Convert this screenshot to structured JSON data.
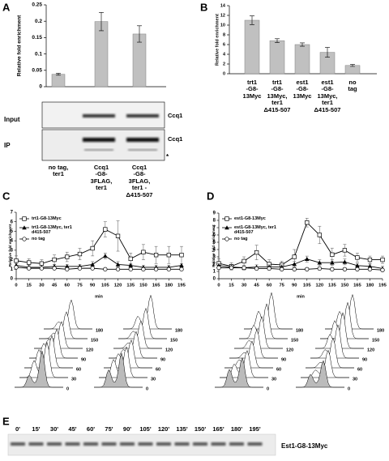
{
  "panel_labels": [
    "A",
    "B",
    "C",
    "D",
    "E"
  ],
  "chart_data": [
    {
      "type": "bar",
      "ylabel": "Relative fold enrichment",
      "categories": [
        "no tag,\nter1",
        "Ccq1\n-G8-\n3FLAG,\nter1",
        "Ccq1\n-G8-\n3FLAG,\nter1 -\nΔ415-507"
      ],
      "values": [
        0.038,
        0.199,
        0.161
      ],
      "errors": [
        0.003,
        0.028,
        0.025
      ],
      "color": "#c0c0c0",
      "ylim": [
        0,
        0.25
      ],
      "yticks": [
        0,
        0.05,
        0.1,
        0.15,
        0.2,
        0.25
      ]
    },
    {
      "type": "bar",
      "ylabel": "Relative fold enrichment",
      "categories": [
        "trt1\n-G8-\n13Myc",
        "trt1\n-G8-\n13Myc,\nter1\nΔ415-507",
        "est1\n-G8-\n13Myc",
        "est1\n-G8-\n13Myc,\nter1\nΔ415-507",
        "no\ntag"
      ],
      "values": [
        11.0,
        6.8,
        6.0,
        4.4,
        1.7
      ],
      "errors": [
        0.9,
        0.4,
        0.35,
        1.0,
        0.2
      ],
      "color": "#c0c0c0",
      "ylim": [
        0,
        14
      ],
      "yticks": [
        0,
        2,
        4,
        6,
        8,
        10,
        12,
        14
      ]
    },
    {
      "type": "line",
      "ylabel": "Relative fold enrichment",
      "xlabel": "min",
      "x": [
        0,
        15,
        30,
        45,
        60,
        75,
        90,
        105,
        120,
        135,
        150,
        165,
        180,
        195
      ],
      "xlim": [
        0,
        195
      ],
      "xticks": [
        0,
        15,
        30,
        45,
        60,
        75,
        90,
        105,
        120,
        135,
        150,
        165,
        180,
        195
      ],
      "ylim": [
        0,
        7
      ],
      "yticks": [
        0,
        1,
        2,
        3,
        4,
        5,
        6,
        7
      ],
      "series": [
        {
          "name": "trt1-G8-13Myc",
          "color": "#000000",
          "marker": "square",
          "values": [
            1.9,
            1.7,
            1.6,
            2.0,
            2.3,
            2.6,
            3.2,
            5.2,
            4.5,
            2.1,
            2.8,
            2.5,
            2.5,
            2.5
          ],
          "errors": [
            0.5,
            0.4,
            0.4,
            0.5,
            0.5,
            0.6,
            0.8,
            0.8,
            1.6,
            0.6,
            0.8,
            0.9,
            0.9,
            0.9
          ]
        },
        {
          "name": "trt1-G8-13Myc, ter1 d415-507",
          "color": "#000000",
          "marker": "triangle",
          "values": [
            1.4,
            1.2,
            1.2,
            1.3,
            1.3,
            1.3,
            1.5,
            2.4,
            1.5,
            1.4,
            1.2,
            1.2,
            1.2,
            1.4
          ],
          "errors": [
            0.2,
            0.2,
            0.2,
            0.2,
            0.2,
            0.2,
            0.3,
            0.3,
            0.3,
            0.2,
            0.2,
            0.2,
            0.2,
            0.2
          ]
        },
        {
          "name": "no tag",
          "color": "#000000",
          "marker": "circle",
          "values": [
            1.2,
            1.1,
            1.1,
            1.1,
            1.0,
            1.1,
            1.1,
            1.0,
            1.0,
            1.0,
            1.0,
            1.0,
            1.0,
            1.0
          ],
          "errors": [
            0.1,
            0.1,
            0.1,
            0.1,
            0.1,
            0.1,
            0.1,
            0.1,
            0.1,
            0.1,
            0.1,
            0.1,
            0.1,
            0.1
          ]
        }
      ]
    },
    {
      "type": "line",
      "ylabel": "Relative fold enrichment",
      "xlabel": "min",
      "x": [
        0,
        15,
        30,
        45,
        60,
        75,
        90,
        105,
        120,
        135,
        150,
        165,
        180,
        195
      ],
      "xlim": [
        0,
        195
      ],
      "xticks": [
        0,
        15,
        30,
        45,
        60,
        75,
        90,
        105,
        120,
        135,
        150,
        165,
        180,
        195
      ],
      "ylim": [
        0,
        9
      ],
      "yticks": [
        0,
        1,
        2,
        3,
        4,
        5,
        6,
        7,
        8,
        9
      ],
      "series": [
        {
          "name": "est1-G8-13Myc",
          "color": "#000000",
          "marker": "square",
          "values": [
            2.1,
            1.7,
            2.4,
            3.6,
            2.0,
            1.9,
            3.0,
            7.7,
            6.0,
            3.3,
            3.9,
            2.9,
            2.6,
            2.6
          ],
          "errors": [
            0.6,
            0.5,
            0.6,
            1.0,
            0.6,
            0.5,
            1.0,
            0.6,
            1.2,
            0.9,
            0.8,
            0.6,
            0.5,
            0.5
          ]
        },
        {
          "name": "est1-G8-13Myc, ter1 d415-507",
          "color": "#000000",
          "marker": "triangle",
          "values": [
            1.8,
            1.6,
            1.5,
            1.6,
            1.6,
            1.6,
            2.0,
            2.7,
            2.2,
            2.2,
            2.3,
            1.8,
            1.7,
            1.4
          ],
          "errors": [
            0.3,
            0.3,
            0.3,
            0.3,
            0.3,
            0.3,
            0.4,
            0.4,
            0.4,
            0.4,
            0.4,
            0.3,
            0.3,
            0.3
          ]
        },
        {
          "name": "no tag",
          "color": "#000000",
          "marker": "circle",
          "values": [
            1.5,
            1.5,
            1.5,
            1.4,
            1.4,
            1.3,
            1.3,
            1.3,
            1.4,
            1.3,
            1.3,
            1.3,
            1.3,
            1.2
          ],
          "errors": [
            0.2,
            0.2,
            0.2,
            0.2,
            0.2,
            0.2,
            0.2,
            0.2,
            0.2,
            0.2,
            0.2,
            0.2,
            0.2,
            0.2
          ]
        }
      ]
    }
  ],
  "blot_a": {
    "rows": [
      "Input",
      "IP"
    ],
    "band_labels": [
      "Ccq1",
      "Ccq1"
    ],
    "asterisk": "*"
  },
  "flow_histograms": [
    {
      "labels": [
        "180",
        "150",
        "120",
        "90",
        "60",
        "30",
        "0"
      ]
    },
    {
      "labels": [
        "180",
        "150",
        "120",
        "90",
        "60",
        "30",
        "0"
      ]
    },
    {
      "labels": [
        "180",
        "150",
        "120",
        "90",
        "60",
        "30",
        "0"
      ]
    },
    {
      "labels": [
        "180",
        "150",
        "120",
        "90",
        "60",
        "30",
        "0"
      ]
    }
  ],
  "blot_e": {
    "lanes": [
      "0'",
      "15'",
      "30'",
      "45'",
      "60'",
      "75'",
      "90'",
      "105'",
      "120'",
      "135'",
      "150'",
      "165'",
      "180'",
      "195'"
    ],
    "label": "Est1-G8-13Myc"
  }
}
